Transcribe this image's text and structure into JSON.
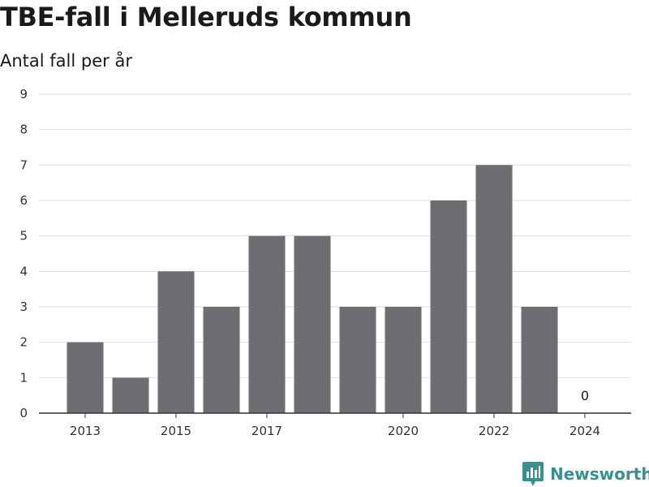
{
  "chart_data": {
    "type": "bar",
    "title": "TBE-fall i Melleruds kommun",
    "subtitle": "Antal fall per år",
    "categories": [
      "2013",
      "2014",
      "2015",
      "2016",
      "2017",
      "2018",
      "2019",
      "2020",
      "2021",
      "2022",
      "2023",
      "2024"
    ],
    "values": [
      2,
      1,
      4,
      3,
      5,
      5,
      3,
      3,
      6,
      7,
      3,
      0
    ],
    "x_tick_labels": [
      "2013",
      "",
      "2015",
      "",
      "2017",
      "",
      "",
      "2020",
      "",
      "2022",
      "",
      "2024"
    ],
    "ylim": [
      0,
      9
    ],
    "y_ticks": [
      0,
      1,
      2,
      3,
      4,
      5,
      6,
      7,
      8,
      9
    ],
    "data_labels": [
      {
        "category": "2024",
        "value": "0"
      }
    ],
    "grid": "horizontal",
    "bar_color": "#6e6d72",
    "grid_color": "#dddddd",
    "axis_color": "#333333"
  },
  "branding": {
    "name": "Newsworthy",
    "color": "#3a8f8f",
    "icon": "bar-chart-badge-icon"
  }
}
